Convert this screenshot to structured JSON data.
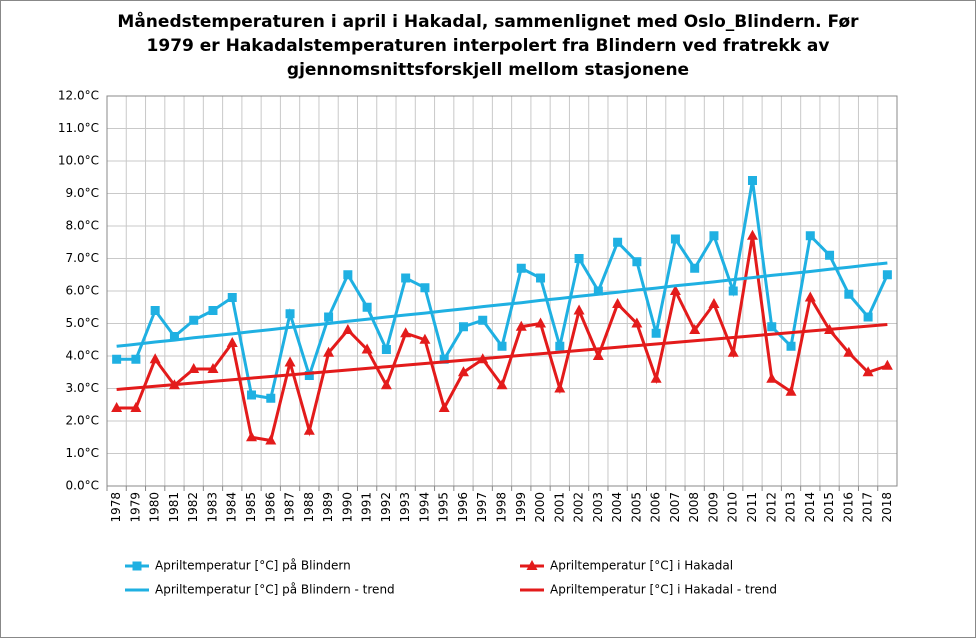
{
  "chart_data": {
    "type": "line",
    "title": [
      "Månedstemperaturen  i april i Hakadal, sammenlignet med Oslo_Blindern. Før",
      "1979 er Hakadalstemperaturen  interpolert fra Blindern ved fratrekk av",
      "gjennomsnittsforskjell  mellom stasjonene"
    ],
    "categories": [
      "1978",
      "1979",
      "1980",
      "1981",
      "1982",
      "1983",
      "1984",
      "1985",
      "1986",
      "1987",
      "1988",
      "1989",
      "1990",
      "1991",
      "1992",
      "1993",
      "1994",
      "1995",
      "1996",
      "1997",
      "1998",
      "1999",
      "2000",
      "2001",
      "2002",
      "2003",
      "2004",
      "2005",
      "2006",
      "2007",
      "2008",
      "2009",
      "2010",
      "2011",
      "2012",
      "2013",
      "2014",
      "2015",
      "2016",
      "2017",
      "2018"
    ],
    "series": [
      {
        "name": "Apriltemperatur  [°C] på Blindern",
        "color": "#1fb0e2",
        "marker": "square",
        "values": [
          3.9,
          3.9,
          5.4,
          4.6,
          5.1,
          5.4,
          5.8,
          2.8,
          2.7,
          5.3,
          3.4,
          5.2,
          6.5,
          5.5,
          4.2,
          6.4,
          6.1,
          3.9,
          4.9,
          5.1,
          4.3,
          6.7,
          6.4,
          4.3,
          7.0,
          6.0,
          7.5,
          6.9,
          4.7,
          7.6,
          6.7,
          7.7,
          6.0,
          9.4,
          4.9,
          4.3,
          7.7,
          7.1,
          5.9,
          5.2,
          6.5
        ]
      },
      {
        "name": "Apriltemperatur  [°C] i Hakadal",
        "color": "#e31b1b",
        "marker": "triangle",
        "values": [
          2.4,
          2.4,
          3.9,
          3.1,
          3.6,
          3.6,
          4.4,
          1.5,
          1.4,
          3.8,
          1.7,
          4.1,
          4.8,
          4.2,
          3.1,
          4.7,
          4.5,
          2.4,
          3.5,
          3.9,
          3.1,
          4.9,
          5.0,
          3.0,
          5.4,
          4.0,
          5.6,
          5.0,
          3.3,
          6.0,
          4.8,
          5.6,
          4.1,
          7.7,
          3.3,
          2.9,
          5.8,
          4.8,
          4.1,
          3.5,
          3.7
        ]
      },
      {
        "name": "Apriltemperatur  [°C] på Blindern - trend",
        "color": "#1fb0e2",
        "marker": "none",
        "values": [
          4.3,
          4.36,
          4.43,
          4.49,
          4.56,
          4.62,
          4.68,
          4.75,
          4.81,
          4.88,
          4.94,
          5.0,
          5.07,
          5.13,
          5.2,
          5.26,
          5.32,
          5.39,
          5.45,
          5.52,
          5.58,
          5.64,
          5.71,
          5.77,
          5.84,
          5.9,
          5.96,
          6.03,
          6.09,
          6.16,
          6.22,
          6.28,
          6.35,
          6.41,
          6.48,
          6.54,
          6.6,
          6.67,
          6.73,
          6.8,
          6.86
        ]
      },
      {
        "name": "Apriltemperatur  [°C] i Hakadal - trend",
        "color": "#e31b1b",
        "marker": "none",
        "values": [
          2.97,
          3.02,
          3.07,
          3.12,
          3.17,
          3.22,
          3.27,
          3.32,
          3.37,
          3.42,
          3.47,
          3.52,
          3.57,
          3.62,
          3.67,
          3.72,
          3.77,
          3.82,
          3.87,
          3.92,
          3.97,
          4.02,
          4.07,
          4.12,
          4.17,
          4.22,
          4.27,
          4.32,
          4.37,
          4.42,
          4.47,
          4.52,
          4.57,
          4.62,
          4.67,
          4.72,
          4.77,
          4.82,
          4.87,
          4.92,
          4.97
        ]
      }
    ],
    "ylim": [
      0,
      12
    ],
    "yticks": [
      {
        "value": 0,
        "label": "0.0°C"
      },
      {
        "value": 1,
        "label": "1.0°C"
      },
      {
        "value": 2,
        "label": "2.0°C"
      },
      {
        "value": 3,
        "label": "3.0°C"
      },
      {
        "value": 4,
        "label": "4.0°C"
      },
      {
        "value": 5,
        "label": "5.0°C"
      },
      {
        "value": 6,
        "label": "6.0°C"
      },
      {
        "value": 7,
        "label": "7.0°C"
      },
      {
        "value": 8,
        "label": "8.0°C"
      },
      {
        "value": 9,
        "label": "9.0°C"
      },
      {
        "value": 10,
        "label": "10.0°C"
      },
      {
        "value": 11,
        "label": "11.0°C"
      },
      {
        "value": 12,
        "label": "12.0°C"
      }
    ],
    "grid": true
  }
}
